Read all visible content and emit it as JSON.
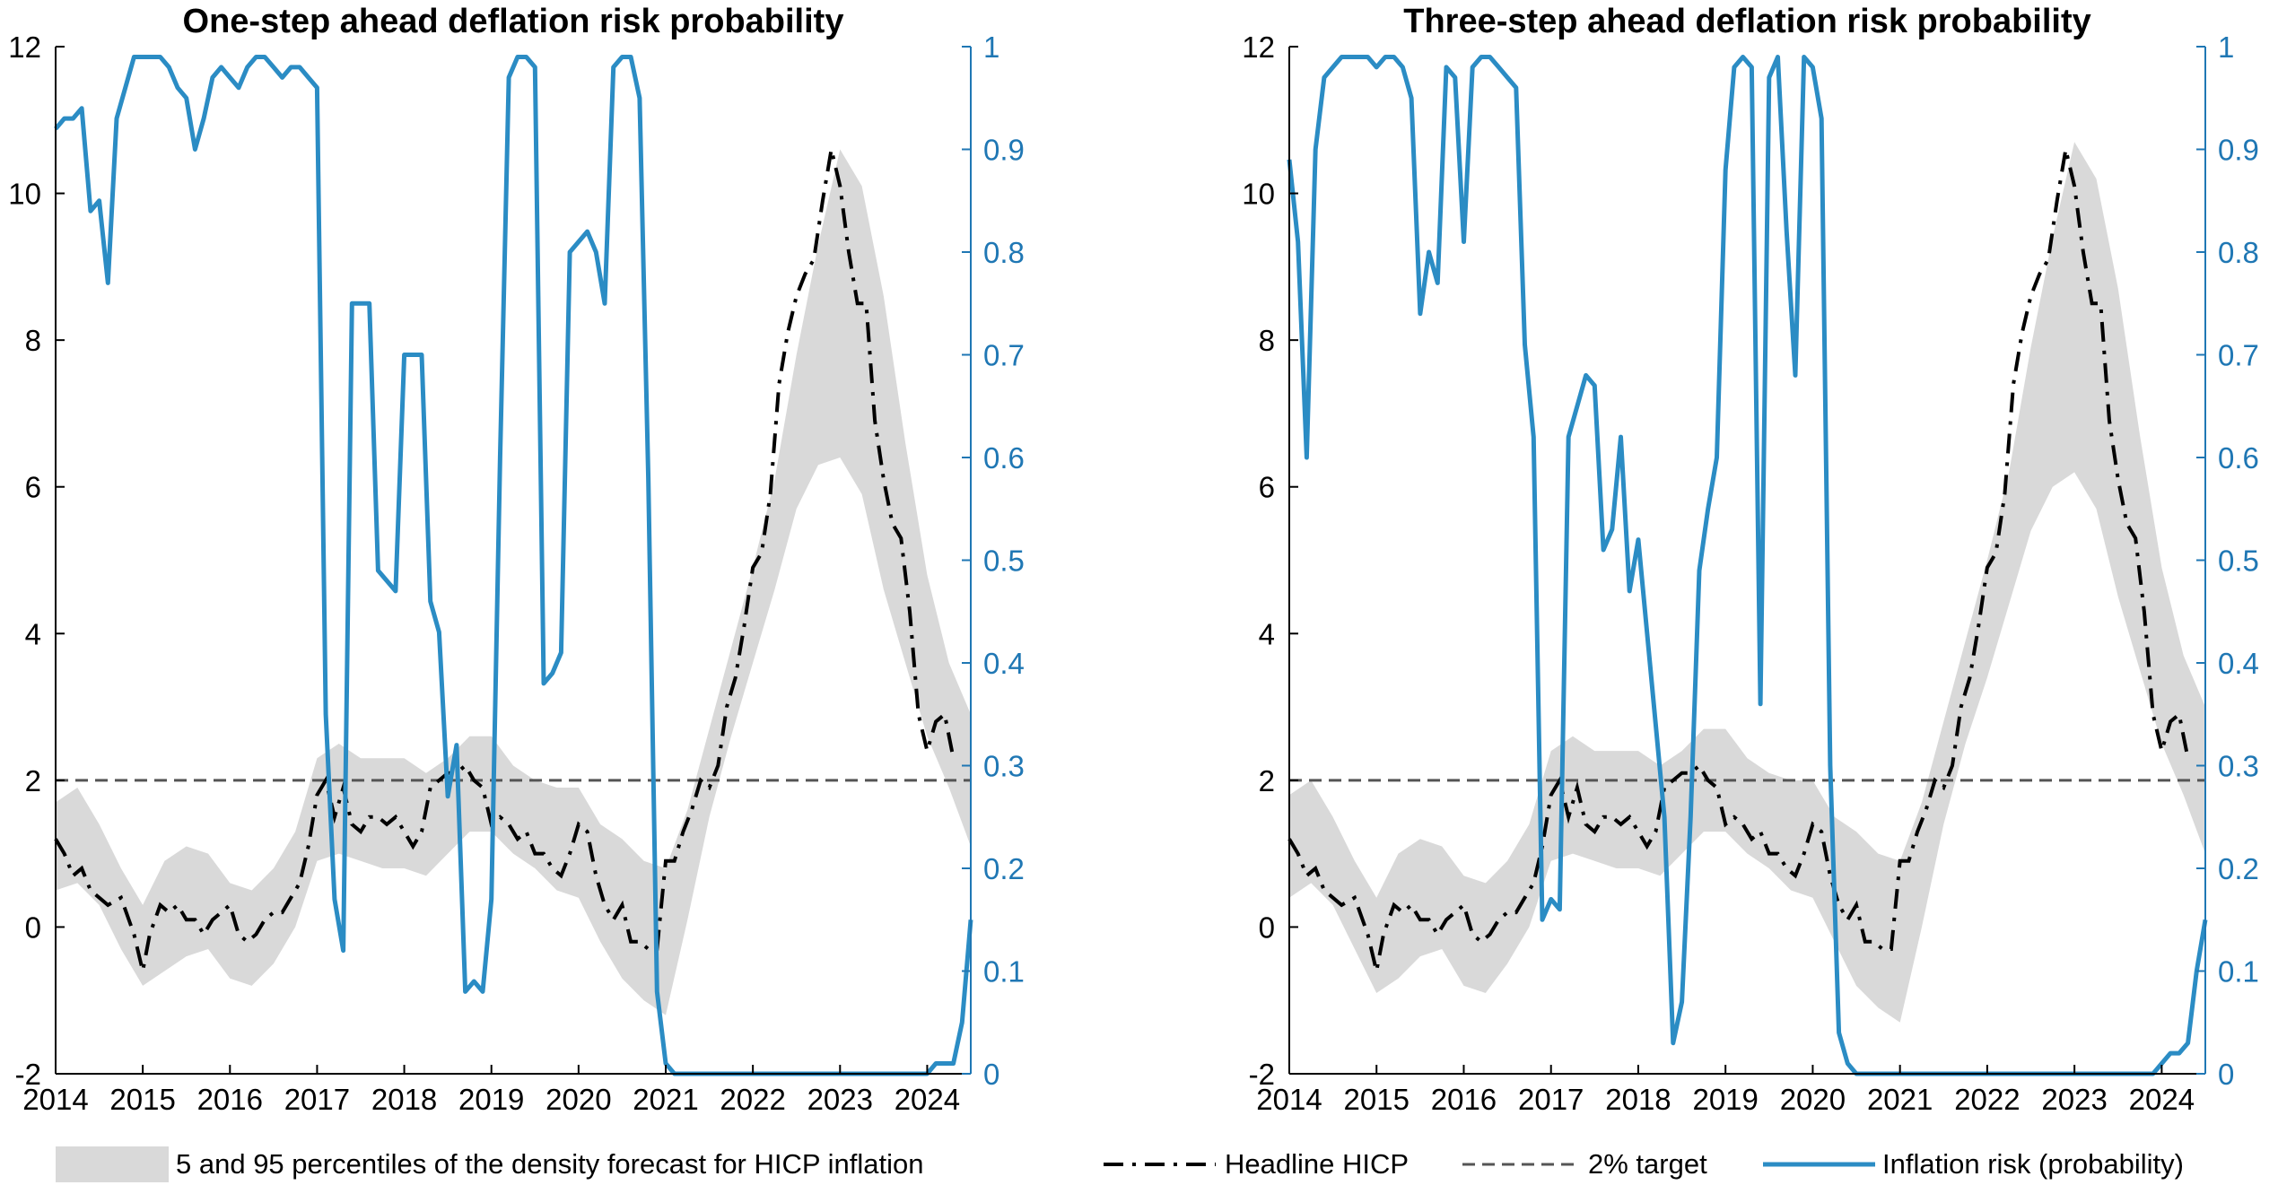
{
  "legend": {
    "band_label": "5 and 95 percentiles of the density forecast for HICP inflation",
    "hicp_label": "Headline HICP",
    "target_label": "2% target",
    "risk_label": "Inflation risk (probability)"
  },
  "colors": {
    "band": "#d9d9d9",
    "hicp": "#000000",
    "target": "#555555",
    "risk": "#2b8cc4",
    "right_axis": "#1f77b4"
  },
  "chart_data": [
    {
      "type": "line",
      "title": "One-step ahead deflation risk probability",
      "xlim": [
        2014.0,
        2024.5
      ],
      "x_ticks": [
        2014,
        2015,
        2016,
        2017,
        2018,
        2019,
        2020,
        2021,
        2022,
        2023,
        2024
      ],
      "ylim_left": [
        -2,
        12
      ],
      "y_ticks_left": [
        -2,
        0,
        2,
        4,
        6,
        8,
        10,
        12
      ],
      "ylim_right": [
        0,
        1
      ],
      "y_ticks_right": [
        0,
        0.1,
        0.2,
        0.3,
        0.4,
        0.5,
        0.6,
        0.7,
        0.8,
        0.9,
        1
      ],
      "target": 2,
      "hicp": {
        "x": [
          2014.0,
          2014.1,
          2014.2,
          2014.3,
          2014.4,
          2014.5,
          2014.6,
          2014.75,
          2014.9,
          2015.0,
          2015.08,
          2015.2,
          2015.3,
          2015.4,
          2015.5,
          2015.6,
          2015.7,
          2015.8,
          2015.9,
          2016.0,
          2016.1,
          2016.2,
          2016.3,
          2016.4,
          2016.5,
          2016.6,
          2016.7,
          2016.8,
          2016.9,
          2017.0,
          2017.1,
          2017.2,
          2017.3,
          2017.4,
          2017.5,
          2017.6,
          2017.7,
          2017.8,
          2017.9,
          2018.0,
          2018.1,
          2018.2,
          2018.3,
          2018.4,
          2018.5,
          2018.6,
          2018.7,
          2018.8,
          2018.9,
          2019.0,
          2019.1,
          2019.2,
          2019.3,
          2019.4,
          2019.5,
          2019.6,
          2019.7,
          2019.8,
          2019.9,
          2020.0,
          2020.1,
          2020.2,
          2020.3,
          2020.4,
          2020.5,
          2020.6,
          2020.7,
          2020.8,
          2020.9,
          2021.0,
          2021.1,
          2021.2,
          2021.3,
          2021.4,
          2021.5,
          2021.6,
          2021.7,
          2021.8,
          2021.9,
          2022.0,
          2022.1,
          2022.2,
          2022.3,
          2022.4,
          2022.5,
          2022.6,
          2022.7,
          2022.8,
          2022.9,
          2023.0,
          2023.1,
          2023.2,
          2023.3,
          2023.4,
          2023.5,
          2023.6,
          2023.7,
          2023.8,
          2023.9,
          2024.0,
          2024.1,
          2024.2,
          2024.3
        ],
        "y": [
          1.2,
          1.0,
          0.7,
          0.8,
          0.5,
          0.4,
          0.3,
          0.4,
          -0.1,
          -0.6,
          -0.1,
          0.3,
          0.2,
          0.3,
          0.1,
          0.1,
          -0.1,
          0.1,
          0.2,
          0.3,
          -0.1,
          -0.2,
          -0.1,
          0.1,
          0.2,
          0.2,
          0.4,
          0.6,
          1.1,
          1.8,
          2.0,
          1.5,
          1.9,
          1.4,
          1.3,
          1.5,
          1.5,
          1.4,
          1.5,
          1.3,
          1.1,
          1.3,
          1.9,
          2.0,
          2.1,
          2.1,
          2.2,
          2.0,
          1.9,
          1.4,
          1.5,
          1.4,
          1.2,
          1.3,
          1.0,
          1.0,
          0.8,
          0.7,
          1.0,
          1.4,
          1.3,
          0.7,
          0.3,
          0.1,
          0.3,
          -0.2,
          -0.2,
          -0.3,
          -0.3,
          0.9,
          0.9,
          1.3,
          1.6,
          2.0,
          1.9,
          2.2,
          3.0,
          3.4,
          4.1,
          4.9,
          5.1,
          5.9,
          7.4,
          8.1,
          8.6,
          8.9,
          9.1,
          9.9,
          10.6,
          10.1,
          9.2,
          8.5,
          8.5,
          6.9,
          6.1,
          5.5,
          5.3,
          4.3,
          2.9,
          2.4,
          2.8,
          2.9,
          2.3
        ]
      },
      "band": {
        "x": [
          2014.0,
          2014.25,
          2014.5,
          2014.75,
          2015.0,
          2015.25,
          2015.5,
          2015.75,
          2016.0,
          2016.25,
          2016.5,
          2016.75,
          2017.0,
          2017.25,
          2017.5,
          2017.75,
          2018.0,
          2018.25,
          2018.5,
          2018.75,
          2019.0,
          2019.25,
          2019.5,
          2019.75,
          2020.0,
          2020.25,
          2020.5,
          2020.75,
          2021.0,
          2021.25,
          2021.5,
          2021.75,
          2022.0,
          2022.25,
          2022.5,
          2022.75,
          2023.0,
          2023.25,
          2023.5,
          2023.75,
          2024.0,
          2024.25,
          2024.5
        ],
        "lower": [
          0.5,
          0.6,
          0.3,
          -0.3,
          -0.8,
          -0.6,
          -0.4,
          -0.3,
          -0.7,
          -0.8,
          -0.5,
          0.0,
          0.9,
          1.0,
          0.9,
          0.8,
          0.8,
          0.7,
          1.0,
          1.3,
          1.3,
          1.0,
          0.8,
          0.5,
          0.4,
          -0.2,
          -0.7,
          -1.0,
          -1.2,
          0.1,
          1.5,
          2.6,
          3.6,
          4.6,
          5.7,
          6.3,
          6.4,
          5.9,
          4.6,
          3.6,
          2.6,
          1.9,
          1.1
        ],
        "upper": [
          1.7,
          1.9,
          1.4,
          0.8,
          0.3,
          0.9,
          1.1,
          1.0,
          0.6,
          0.5,
          0.8,
          1.3,
          2.3,
          2.5,
          2.3,
          2.3,
          2.3,
          2.1,
          2.3,
          2.6,
          2.6,
          2.2,
          2.0,
          1.9,
          1.9,
          1.4,
          1.2,
          0.9,
          0.8,
          1.6,
          2.7,
          3.8,
          4.9,
          6.1,
          7.8,
          9.3,
          10.6,
          10.1,
          8.6,
          6.6,
          4.8,
          3.6,
          2.9
        ]
      },
      "risk": {
        "x": [
          2014.0,
          2014.1,
          2014.2,
          2014.3,
          2014.4,
          2014.5,
          2014.6,
          2014.7,
          2014.8,
          2014.9,
          2015.0,
          2015.1,
          2015.2,
          2015.3,
          2015.4,
          2015.5,
          2015.6,
          2015.7,
          2015.8,
          2015.9,
          2016.0,
          2016.1,
          2016.2,
          2016.3,
          2016.4,
          2016.5,
          2016.6,
          2016.7,
          2016.8,
          2016.9,
          2017.0,
          2017.1,
          2017.2,
          2017.3,
          2017.4,
          2017.5,
          2017.6,
          2017.7,
          2017.8,
          2017.9,
          2018.0,
          2018.1,
          2018.2,
          2018.3,
          2018.4,
          2018.5,
          2018.6,
          2018.7,
          2018.8,
          2018.9,
          2019.0,
          2019.1,
          2019.2,
          2019.3,
          2019.4,
          2019.5,
          2019.6,
          2019.7,
          2019.8,
          2019.9,
          2020.0,
          2020.1,
          2020.2,
          2020.3,
          2020.4,
          2020.5,
          2020.6,
          2020.7,
          2020.8,
          2020.9,
          2021.0,
          2021.1,
          2021.2,
          2021.3,
          2021.4,
          2021.5,
          2021.6,
          2021.7,
          2021.8,
          2021.9,
          2022.0,
          2022.5,
          2023.0,
          2023.5,
          2023.9,
          2024.0,
          2024.1,
          2024.2,
          2024.3,
          2024.4,
          2024.5
        ],
        "y": [
          0.92,
          0.93,
          0.93,
          0.94,
          0.84,
          0.85,
          0.77,
          0.93,
          0.96,
          0.99,
          0.99,
          0.99,
          0.99,
          0.98,
          0.96,
          0.95,
          0.9,
          0.93,
          0.97,
          0.98,
          0.97,
          0.96,
          0.98,
          0.99,
          0.99,
          0.98,
          0.97,
          0.98,
          0.98,
          0.97,
          0.96,
          0.35,
          0.17,
          0.12,
          0.75,
          0.75,
          0.75,
          0.49,
          0.48,
          0.47,
          0.7,
          0.7,
          0.7,
          0.46,
          0.43,
          0.27,
          0.32,
          0.08,
          0.09,
          0.08,
          0.17,
          0.6,
          0.97,
          0.99,
          0.99,
          0.98,
          0.38,
          0.39,
          0.41,
          0.8,
          0.81,
          0.82,
          0.8,
          0.75,
          0.98,
          0.99,
          0.99,
          0.95,
          0.58,
          0.08,
          0.01,
          0.0,
          0.0,
          0.0,
          0.0,
          0.0,
          0.0,
          0.0,
          0.0,
          0.0,
          0.0,
          0.0,
          0.0,
          0.0,
          0.0,
          0.0,
          0.01,
          0.01,
          0.01,
          0.05,
          0.15
        ]
      }
    },
    {
      "type": "line",
      "title": "Three-step ahead deflation risk probability",
      "xlim": [
        2014.0,
        2024.5
      ],
      "x_ticks": [
        2014,
        2015,
        2016,
        2017,
        2018,
        2019,
        2020,
        2021,
        2022,
        2023,
        2024
      ],
      "ylim_left": [
        -2,
        12
      ],
      "y_ticks_left": [
        -2,
        0,
        2,
        4,
        6,
        8,
        10,
        12
      ],
      "ylim_right": [
        0,
        1
      ],
      "y_ticks_right": [
        0,
        0.1,
        0.2,
        0.3,
        0.4,
        0.5,
        0.6,
        0.7,
        0.8,
        0.9,
        1
      ],
      "target": 2,
      "hicp": {
        "x": [
          2014.0,
          2014.1,
          2014.2,
          2014.3,
          2014.4,
          2014.5,
          2014.6,
          2014.75,
          2014.9,
          2015.0,
          2015.08,
          2015.2,
          2015.3,
          2015.4,
          2015.5,
          2015.6,
          2015.7,
          2015.8,
          2015.9,
          2016.0,
          2016.1,
          2016.2,
          2016.3,
          2016.4,
          2016.5,
          2016.6,
          2016.7,
          2016.8,
          2016.9,
          2017.0,
          2017.1,
          2017.2,
          2017.3,
          2017.4,
          2017.5,
          2017.6,
          2017.7,
          2017.8,
          2017.9,
          2018.0,
          2018.1,
          2018.2,
          2018.3,
          2018.4,
          2018.5,
          2018.6,
          2018.7,
          2018.8,
          2018.9,
          2019.0,
          2019.1,
          2019.2,
          2019.3,
          2019.4,
          2019.5,
          2019.6,
          2019.7,
          2019.8,
          2019.9,
          2020.0,
          2020.1,
          2020.2,
          2020.3,
          2020.4,
          2020.5,
          2020.6,
          2020.7,
          2020.8,
          2020.9,
          2021.0,
          2021.1,
          2021.2,
          2021.3,
          2021.4,
          2021.5,
          2021.6,
          2021.7,
          2021.8,
          2021.9,
          2022.0,
          2022.1,
          2022.2,
          2022.3,
          2022.4,
          2022.5,
          2022.6,
          2022.7,
          2022.8,
          2022.9,
          2023.0,
          2023.1,
          2023.2,
          2023.3,
          2023.4,
          2023.5,
          2023.6,
          2023.7,
          2023.8,
          2023.9,
          2024.0,
          2024.1,
          2024.2,
          2024.3
        ],
        "y": [
          1.2,
          1.0,
          0.7,
          0.8,
          0.5,
          0.4,
          0.3,
          0.4,
          -0.1,
          -0.6,
          -0.1,
          0.3,
          0.2,
          0.3,
          0.1,
          0.1,
          -0.1,
          0.1,
          0.2,
          0.3,
          -0.1,
          -0.2,
          -0.1,
          0.1,
          0.2,
          0.2,
          0.4,
          0.6,
          1.1,
          1.8,
          2.0,
          1.5,
          1.9,
          1.4,
          1.3,
          1.5,
          1.5,
          1.4,
          1.5,
          1.3,
          1.1,
          1.3,
          1.9,
          2.0,
          2.1,
          2.1,
          2.2,
          2.0,
          1.9,
          1.4,
          1.5,
          1.4,
          1.2,
          1.3,
          1.0,
          1.0,
          0.8,
          0.7,
          1.0,
          1.4,
          1.3,
          0.7,
          0.3,
          0.1,
          0.3,
          -0.2,
          -0.2,
          -0.3,
          -0.3,
          0.9,
          0.9,
          1.3,
          1.6,
          2.0,
          1.9,
          2.2,
          3.0,
          3.4,
          4.1,
          4.9,
          5.1,
          5.9,
          7.4,
          8.1,
          8.6,
          8.9,
          9.1,
          9.9,
          10.6,
          10.1,
          9.2,
          8.5,
          8.5,
          6.9,
          6.1,
          5.5,
          5.3,
          4.3,
          2.9,
          2.4,
          2.8,
          2.9,
          2.3
        ]
      },
      "band": {
        "x": [
          2014.0,
          2014.25,
          2014.5,
          2014.75,
          2015.0,
          2015.25,
          2015.5,
          2015.75,
          2016.0,
          2016.25,
          2016.5,
          2016.75,
          2017.0,
          2017.25,
          2017.5,
          2017.75,
          2018.0,
          2018.25,
          2018.5,
          2018.75,
          2019.0,
          2019.25,
          2019.5,
          2019.75,
          2020.0,
          2020.25,
          2020.5,
          2020.75,
          2021.0,
          2021.25,
          2021.5,
          2021.75,
          2022.0,
          2022.25,
          2022.5,
          2022.75,
          2023.0,
          2023.25,
          2023.5,
          2023.75,
          2024.0,
          2024.25,
          2024.5
        ],
        "lower": [
          0.4,
          0.6,
          0.3,
          -0.3,
          -0.9,
          -0.7,
          -0.4,
          -0.3,
          -0.8,
          -0.9,
          -0.5,
          0.0,
          0.9,
          1.0,
          0.9,
          0.8,
          0.8,
          0.7,
          1.0,
          1.3,
          1.3,
          1.0,
          0.8,
          0.5,
          0.4,
          -0.2,
          -0.8,
          -1.1,
          -1.3,
          0.0,
          1.4,
          2.5,
          3.4,
          4.4,
          5.4,
          6.0,
          6.2,
          5.7,
          4.5,
          3.5,
          2.5,
          1.8,
          1.0
        ],
        "upper": [
          1.8,
          2.0,
          1.5,
          0.9,
          0.4,
          1.0,
          1.2,
          1.1,
          0.7,
          0.6,
          0.9,
          1.4,
          2.4,
          2.6,
          2.4,
          2.4,
          2.4,
          2.2,
          2.4,
          2.7,
          2.7,
          2.3,
          2.1,
          2.0,
          2.0,
          1.5,
          1.3,
          1.0,
          0.9,
          1.7,
          2.8,
          3.9,
          5.0,
          6.2,
          7.9,
          9.4,
          10.7,
          10.2,
          8.7,
          6.7,
          4.9,
          3.7,
          3.0
        ]
      },
      "risk": {
        "x": [
          2014.0,
          2014.1,
          2014.2,
          2014.3,
          2014.4,
          2014.5,
          2014.6,
          2014.7,
          2014.8,
          2014.9,
          2015.0,
          2015.1,
          2015.2,
          2015.3,
          2015.4,
          2015.5,
          2015.6,
          2015.7,
          2015.8,
          2015.9,
          2016.0,
          2016.1,
          2016.2,
          2016.3,
          2016.4,
          2016.5,
          2016.6,
          2016.7,
          2016.8,
          2016.9,
          2017.0,
          2017.1,
          2017.2,
          2017.3,
          2017.4,
          2017.5,
          2017.6,
          2017.7,
          2017.8,
          2017.9,
          2018.0,
          2018.1,
          2018.2,
          2018.3,
          2018.4,
          2018.5,
          2018.6,
          2018.7,
          2018.8,
          2018.9,
          2019.0,
          2019.1,
          2019.2,
          2019.3,
          2019.4,
          2019.5,
          2019.6,
          2019.7,
          2019.8,
          2019.9,
          2020.0,
          2020.1,
          2020.2,
          2020.3,
          2020.4,
          2020.5,
          2020.6,
          2020.7,
          2020.8,
          2020.9,
          2021.0,
          2021.1,
          2021.2,
          2021.3,
          2021.4,
          2021.5,
          2021.6,
          2021.7,
          2021.8,
          2021.9,
          2022.0,
          2022.5,
          2023.0,
          2023.5,
          2023.9,
          2024.0,
          2024.1,
          2024.2,
          2024.3,
          2024.4,
          2024.5
        ],
        "y": [
          0.89,
          0.81,
          0.6,
          0.9,
          0.97,
          0.98,
          0.99,
          0.99,
          0.99,
          0.99,
          0.98,
          0.99,
          0.99,
          0.98,
          0.95,
          0.74,
          0.8,
          0.77,
          0.98,
          0.97,
          0.81,
          0.98,
          0.99,
          0.99,
          0.98,
          0.97,
          0.96,
          0.71,
          0.62,
          0.15,
          0.17,
          0.16,
          0.62,
          0.65,
          0.68,
          0.67,
          0.51,
          0.53,
          0.62,
          0.47,
          0.52,
          0.43,
          0.34,
          0.25,
          0.03,
          0.07,
          0.25,
          0.49,
          0.55,
          0.6,
          0.88,
          0.98,
          0.99,
          0.98,
          0.36,
          0.97,
          0.99,
          0.82,
          0.68,
          0.99,
          0.98,
          0.93,
          0.3,
          0.04,
          0.01,
          0.0,
          0.0,
          0.0,
          0.0,
          0.0,
          0.0,
          0.0,
          0.0,
          0.0,
          0.0,
          0.0,
          0.0,
          0.0,
          0.0,
          0.0,
          0.0,
          0.0,
          0.0,
          0.0,
          0.0,
          0.01,
          0.02,
          0.02,
          0.03,
          0.1,
          0.15
        ]
      }
    }
  ]
}
